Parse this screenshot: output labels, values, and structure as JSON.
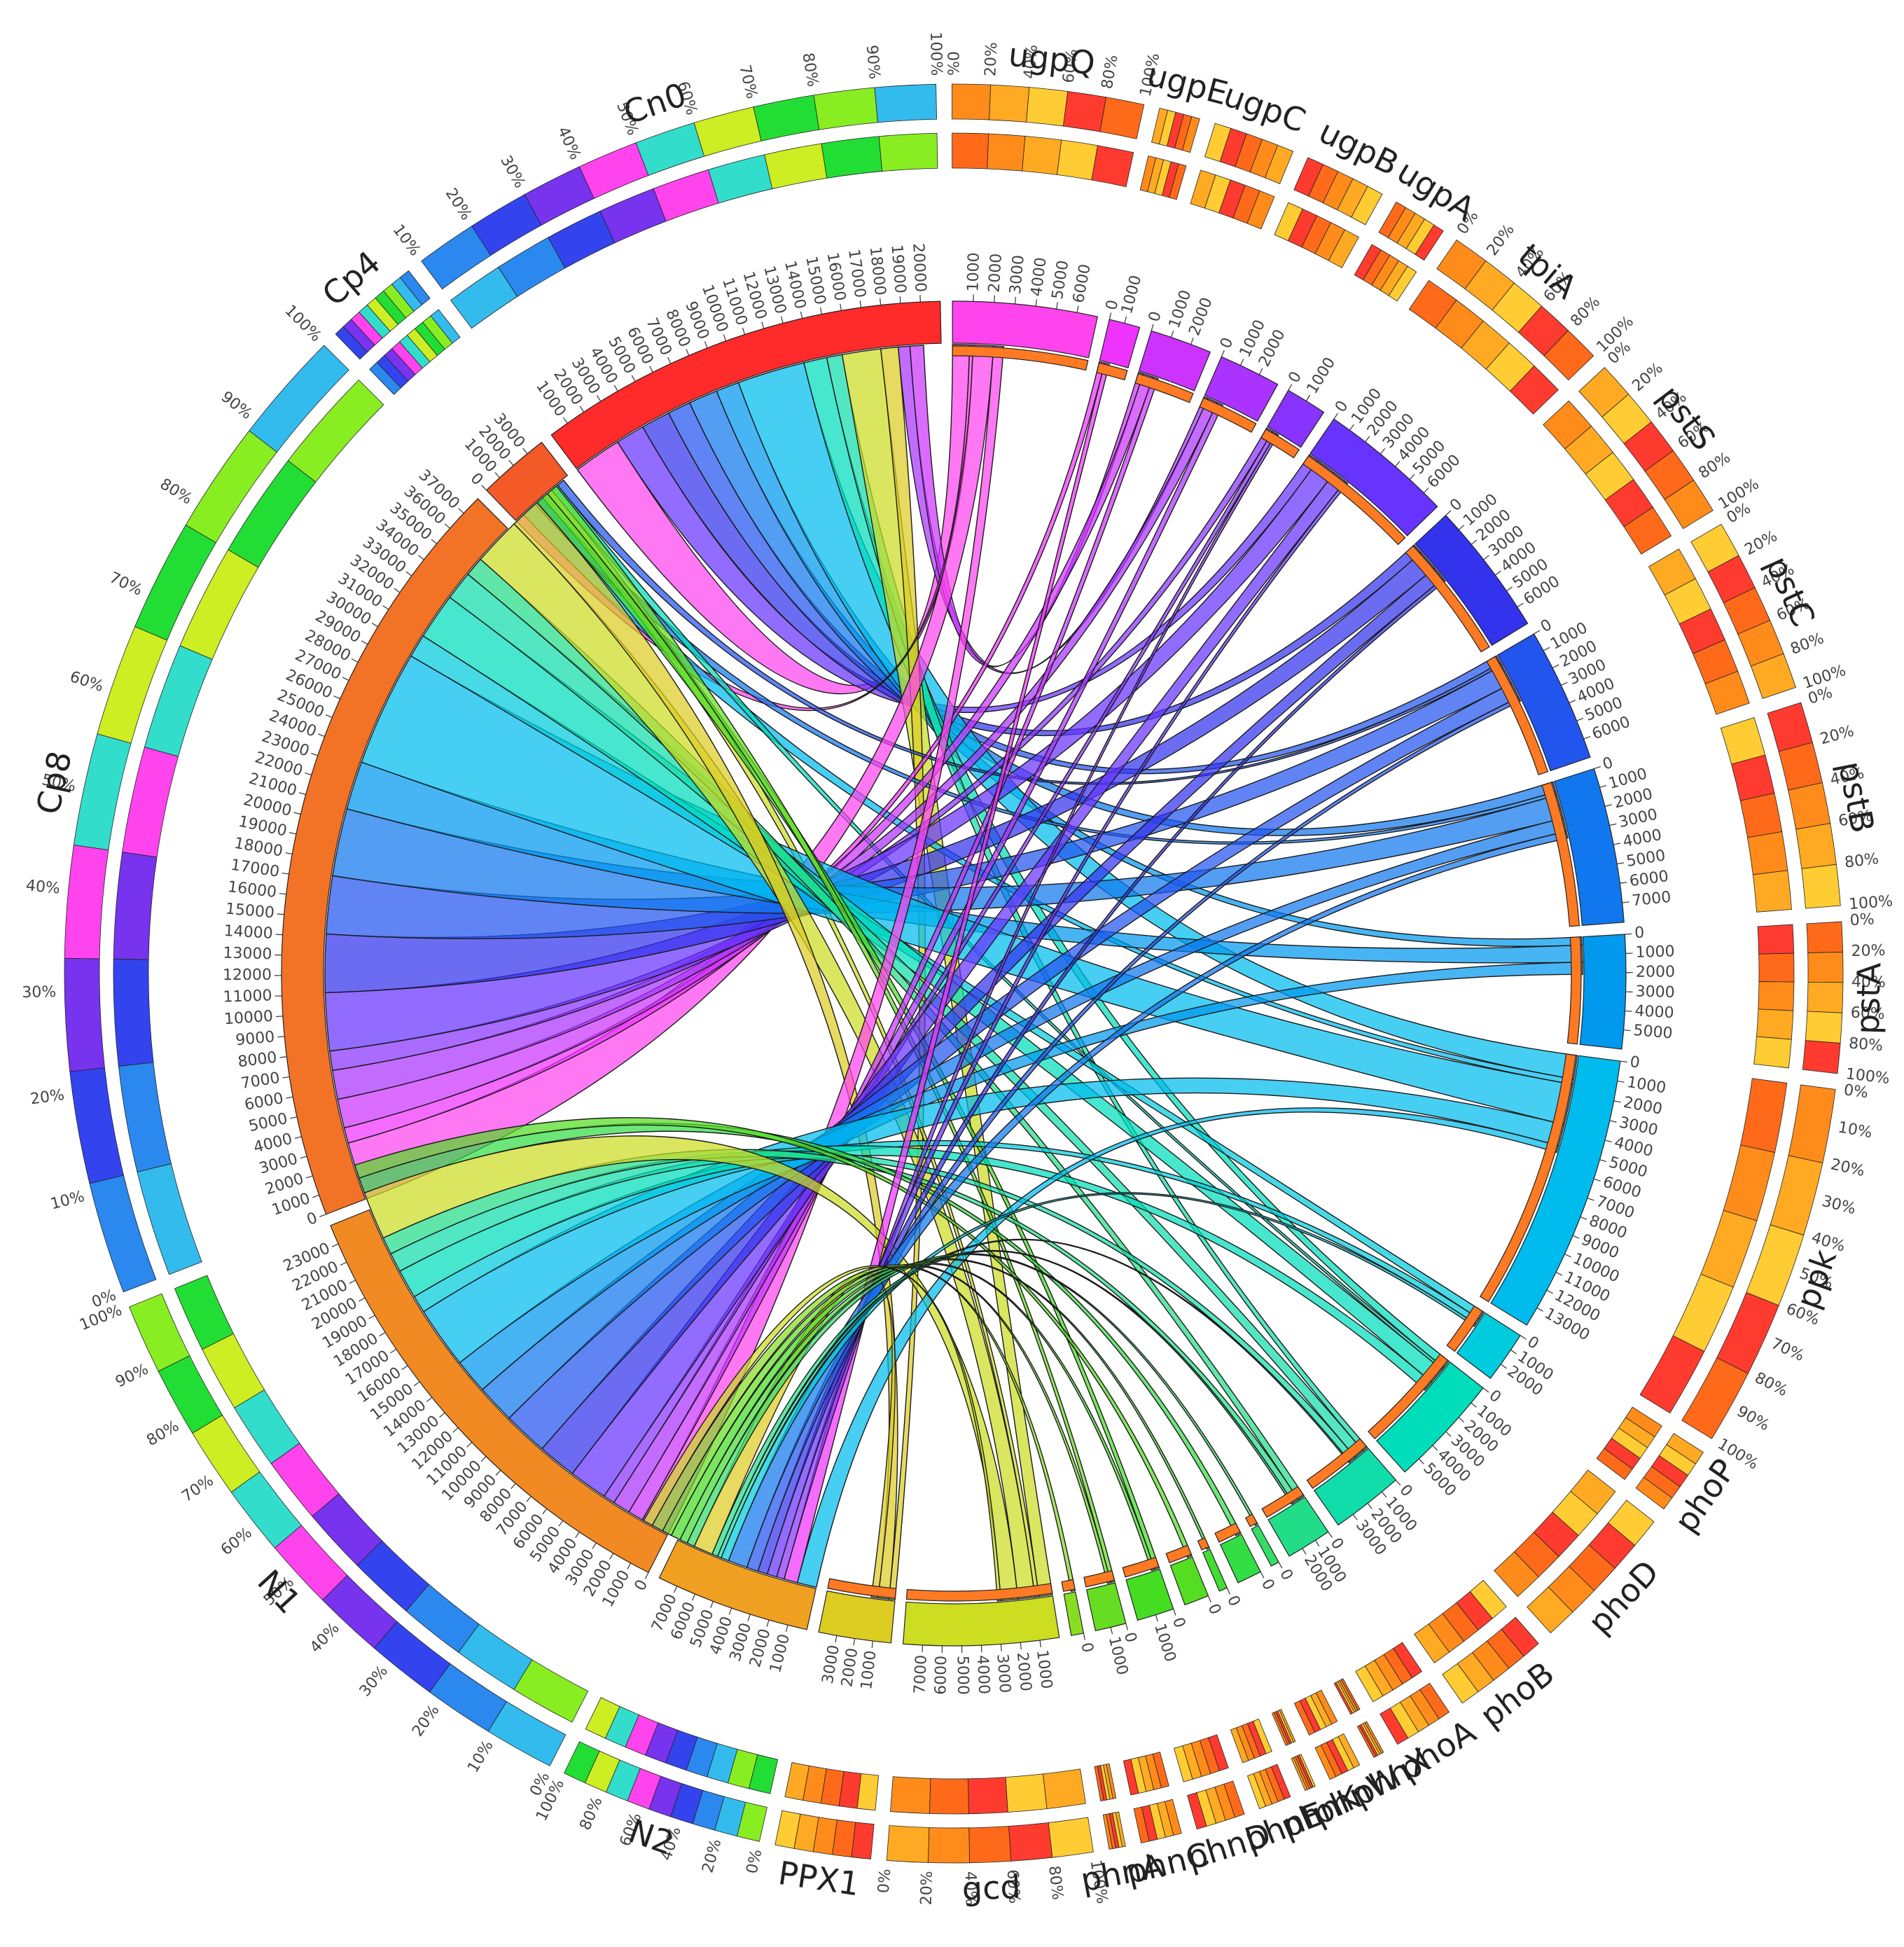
{
  "diagram": {
    "type": "circos-chord",
    "segments": [
      {
        "id": "Cn0",
        "label": "Cn0",
        "kind": "sample",
        "size": 20000,
        "color": "#ff2a2a",
        "ticks": [
          "1000",
          "2000",
          "3000",
          "4000",
          "5000",
          "6000",
          "7000",
          "8000",
          "9000",
          "10000",
          "11000",
          "12000",
          "13000",
          "14000",
          "15000",
          "16000",
          "17000",
          "18000",
          "19000",
          "20000"
        ],
        "pct": [
          "10%",
          "20%",
          "30%",
          "40%",
          "50%",
          "60%",
          "70%",
          "80%",
          "90%",
          "100%"
        ]
      },
      {
        "id": "ugpQ",
        "label": "ugpQ",
        "kind": "gene",
        "size": 7000,
        "color": "#ff44ee",
        "ticks": [
          "1000",
          "2000",
          "3000",
          "4000",
          "5000",
          "6000"
        ],
        "pct": [
          "0%",
          "20%",
          "40%",
          "60%",
          "80%",
          "100%"
        ]
      },
      {
        "id": "ugpE",
        "label": "ugpE",
        "kind": "gene",
        "size": 1500,
        "color": "#ee33ff",
        "ticks": [
          "0",
          "1000"
        ],
        "pct": []
      },
      {
        "id": "ugpC",
        "label": "ugpC",
        "kind": "gene",
        "size": 3000,
        "color": "#cc33ff",
        "ticks": [
          "0",
          "1000",
          "2000"
        ],
        "pct": []
      },
      {
        "id": "ugpB",
        "label": "ugpB",
        "kind": "gene",
        "size": 3000,
        "color": "#aa33ff",
        "ticks": [
          "0",
          "1000",
          "2000"
        ],
        "pct": []
      },
      {
        "id": "ugpA",
        "label": "ugpA",
        "kind": "gene",
        "size": 2000,
        "color": "#8833ff",
        "ticks": [
          "0",
          "1000"
        ],
        "pct": []
      },
      {
        "id": "tpiA",
        "label": "tpiA",
        "kind": "gene",
        "size": 6500,
        "color": "#6633ff",
        "ticks": [
          "0",
          "1000",
          "2000",
          "3000",
          "4000",
          "5000",
          "6000"
        ],
        "pct": [
          "0%",
          "20%",
          "40%",
          "60%",
          "80%",
          "100%"
        ]
      },
      {
        "id": "pstS",
        "label": "pstS",
        "kind": "gene",
        "size": 6500,
        "color": "#3333ee",
        "ticks": [
          "0",
          "1000",
          "2000",
          "3000",
          "4000",
          "5000",
          "6000"
        ],
        "pct": [
          "0%",
          "20%",
          "40%",
          "60%",
          "80%",
          "100%"
        ]
      },
      {
        "id": "pstC",
        "label": "pstC",
        "kind": "gene",
        "size": 6500,
        "color": "#2255ee",
        "ticks": [
          "0",
          "1000",
          "2000",
          "3000",
          "4000",
          "5000",
          "6000"
        ],
        "pct": [
          "0%",
          "20%",
          "40%",
          "60%",
          "80%",
          "100%"
        ]
      },
      {
        "id": "pstB",
        "label": "pstB",
        "kind": "gene",
        "size": 7500,
        "color": "#1177ee",
        "ticks": [
          "0",
          "1000",
          "2000",
          "3000",
          "4000",
          "5000",
          "6000",
          "7000"
        ],
        "pct": [
          "0%",
          "20%",
          "40%",
          "60%",
          "80%",
          "100%"
        ]
      },
      {
        "id": "pstA",
        "label": "pstA",
        "kind": "gene",
        "size": 5500,
        "color": "#0099ee",
        "ticks": [
          "0",
          "1000",
          "2000",
          "3000",
          "4000",
          "5000"
        ],
        "pct": [
          "0%",
          "20%",
          "40%",
          "60%",
          "80%",
          "100%"
        ]
      },
      {
        "id": "ppk",
        "label": "ppk",
        "kind": "gene",
        "size": 13500,
        "color": "#00bbee",
        "ticks": [
          "0",
          "1000",
          "2000",
          "3000",
          "4000",
          "5000",
          "6000",
          "7000",
          "8000",
          "9000",
          "10000",
          "11000",
          "12000",
          "13000"
        ],
        "pct": [
          "0%",
          "10%",
          "20%",
          "30%",
          "40%",
          "50%",
          "60%",
          "70%",
          "80%",
          "90%",
          "100%"
        ]
      },
      {
        "id": "phoP",
        "label": "phoP",
        "kind": "gene",
        "size": 2500,
        "color": "#00ccdd",
        "ticks": [
          "0",
          "1000",
          "2000"
        ],
        "pct": []
      },
      {
        "id": "phoD",
        "label": "phoD",
        "kind": "gene",
        "size": 5500,
        "color": "#00ddbb",
        "ticks": [
          "0",
          "1000",
          "2000",
          "3000",
          "4000",
          "5000"
        ],
        "pct": []
      },
      {
        "id": "phoB",
        "label": "phoB",
        "kind": "gene",
        "size": 3500,
        "color": "#11ddaa",
        "ticks": [
          "0",
          "1000",
          "2000",
          "3000"
        ],
        "pct": []
      },
      {
        "id": "phoA",
        "label": "phoA",
        "kind": "gene",
        "size": 2200,
        "color": "#22dd88",
        "ticks": [
          "0",
          "1000",
          "2000"
        ],
        "pct": []
      },
      {
        "id": "phnX",
        "label": "phnX",
        "kind": "gene",
        "size": 400,
        "color": "#33dd66",
        "ticks": [
          "0"
        ],
        "pct": []
      },
      {
        "id": "phnW",
        "label": "phnW",
        "kind": "gene",
        "size": 1200,
        "color": "#33dd44",
        "ticks": [
          "0"
        ],
        "pct": []
      },
      {
        "id": "phnK",
        "label": "phnK",
        "kind": "gene",
        "size": 400,
        "color": "#44dd33",
        "ticks": [
          "0"
        ],
        "pct": []
      },
      {
        "id": "phnE",
        "label": "phnE",
        "kind": "gene",
        "size": 1200,
        "color": "#55dd22",
        "ticks": [
          "0"
        ],
        "pct": []
      },
      {
        "id": "phnD",
        "label": "phnD",
        "kind": "gene",
        "size": 1800,
        "color": "#44dd22",
        "ticks": [
          "0",
          "1000"
        ],
        "pct": []
      },
      {
        "id": "phnC",
        "label": "phnC",
        "kind": "gene",
        "size": 1500,
        "color": "#66dd22",
        "ticks": [
          "0",
          "1000"
        ],
        "pct": []
      },
      {
        "id": "phnA",
        "label": "phnA",
        "kind": "gene",
        "size": 600,
        "color": "#88dd22",
        "ticks": [
          "0"
        ],
        "pct": []
      },
      {
        "id": "gcd",
        "label": "gcd",
        "kind": "gene",
        "size": 7500,
        "color": "#ccdd22",
        "ticks": [
          "1000",
          "2000",
          "3000",
          "4000",
          "5000",
          "6000",
          "7000"
        ],
        "pct": [
          "100%",
          "80%",
          "60%",
          "40%",
          "20%",
          "0%"
        ]
      },
      {
        "id": "PPX1",
        "label": "PPX1",
        "kind": "gene",
        "size": 3500,
        "color": "#ddcc22",
        "ticks": [
          "1000",
          "2000",
          "3000"
        ],
        "pct": []
      },
      {
        "id": "N2",
        "label": "N2",
        "kind": "sample",
        "size": 7500,
        "color": "#f0a020",
        "ticks": [
          "1000",
          "2000",
          "3000",
          "4000",
          "5000",
          "6000",
          "7000"
        ],
        "pct": [
          "0%",
          "20%",
          "40%",
          "60%",
          "80%",
          "100%"
        ]
      },
      {
        "id": "N1",
        "label": "N1",
        "kind": "sample",
        "size": 23000,
        "color": "#f28a24",
        "ticks": [
          "0",
          "1000",
          "2000",
          "3000",
          "4000",
          "5000",
          "6000",
          "7000",
          "8000",
          "9000",
          "10000",
          "11000",
          "12000",
          "13000",
          "14000",
          "15000",
          "16000",
          "17000",
          "18000",
          "19000",
          "20000",
          "21000",
          "22000",
          "23000"
        ],
        "pct": [
          "0%",
          "10%",
          "20%",
          "30%",
          "40%",
          "50%",
          "60%",
          "70%",
          "80%",
          "90%",
          "100%"
        ]
      },
      {
        "id": "Cp8",
        "label": "Cp8",
        "kind": "sample",
        "size": 37000,
        "color": "#f37326",
        "ticks": [
          "0",
          "1000",
          "2000",
          "3000",
          "4000",
          "5000",
          "6000",
          "7000",
          "8000",
          "9000",
          "10000",
          "11000",
          "12000",
          "13000",
          "14000",
          "15000",
          "16000",
          "17000",
          "18000",
          "19000",
          "20000",
          "21000",
          "22000",
          "23000",
          "24000",
          "25000",
          "26000",
          "27000",
          "28000",
          "29000",
          "30000",
          "31000",
          "32000",
          "33000",
          "34000",
          "35000",
          "36000",
          "37000"
        ],
        "pct": [
          "0%",
          "10%",
          "20%",
          "30%",
          "40%",
          "50%",
          "60%",
          "70%",
          "80%",
          "90%",
          "100%"
        ]
      },
      {
        "id": "Cp4",
        "label": "Cp4",
        "kind": "sample",
        "size": 3500,
        "color": "#f45a28",
        "ticks": [
          "0",
          "1000",
          "2000",
          "3000"
        ],
        "pct": []
      }
    ],
    "links": [
      {
        "sample": "Cn0",
        "gene": "ugpQ",
        "value": 2500
      },
      {
        "sample": "Cn0",
        "gene": "tpiA",
        "value": 1500
      },
      {
        "sample": "Cn0",
        "gene": "pstS",
        "value": 1500
      },
      {
        "sample": "Cn0",
        "gene": "pstC",
        "value": 1200
      },
      {
        "sample": "Cn0",
        "gene": "pstB",
        "value": 1500
      },
      {
        "sample": "Cn0",
        "gene": "pstA",
        "value": 1200
      },
      {
        "sample": "Cn0",
        "gene": "ppk",
        "value": 3500
      },
      {
        "sample": "Cn0",
        "gene": "phoD",
        "value": 1200
      },
      {
        "sample": "Cn0",
        "gene": "phoB",
        "value": 800
      },
      {
        "sample": "Cn0",
        "gene": "gcd",
        "value": 2000
      },
      {
        "sample": "Cn0",
        "gene": "PPX1",
        "value": 900
      },
      {
        "sample": "Cn0",
        "gene": "ugpB",
        "value": 600
      },
      {
        "sample": "Cn0",
        "gene": "ugpC",
        "value": 700
      },
      {
        "sample": "Cp4",
        "gene": "ugpQ",
        "value": 500
      },
      {
        "sample": "Cp4",
        "gene": "ppk",
        "value": 800
      },
      {
        "sample": "Cp4",
        "gene": "pstB",
        "value": 500
      },
      {
        "sample": "Cp4",
        "gene": "gcd",
        "value": 600
      },
      {
        "sample": "Cp4",
        "gene": "phoD",
        "value": 400
      },
      {
        "sample": "Cp4",
        "gene": "pstC",
        "value": 400
      },
      {
        "sample": "Cp8",
        "gene": "ugpQ",
        "value": 3000
      },
      {
        "sample": "Cp8",
        "gene": "ugpE",
        "value": 800
      },
      {
        "sample": "Cp8",
        "gene": "ugpC",
        "value": 1500
      },
      {
        "sample": "Cp8",
        "gene": "ugpB",
        "value": 1500
      },
      {
        "sample": "Cp8",
        "gene": "ugpA",
        "value": 1000
      },
      {
        "sample": "Cp8",
        "gene": "tpiA",
        "value": 3000
      },
      {
        "sample": "Cp8",
        "gene": "pstS",
        "value": 3000
      },
      {
        "sample": "Cp8",
        "gene": "pstC",
        "value": 3000
      },
      {
        "sample": "Cp8",
        "gene": "pstB",
        "value": 3500
      },
      {
        "sample": "Cp8",
        "gene": "pstA",
        "value": 2500
      },
      {
        "sample": "Cp8",
        "gene": "ppk",
        "value": 6000
      },
      {
        "sample": "Cp8",
        "gene": "phoP",
        "value": 1200
      },
      {
        "sample": "Cp8",
        "gene": "phoD",
        "value": 2400
      },
      {
        "sample": "Cp8",
        "gene": "phoB",
        "value": 1500
      },
      {
        "sample": "Cp8",
        "gene": "phoA",
        "value": 1000
      },
      {
        "sample": "Cp8",
        "gene": "gcd",
        "value": 2500
      },
      {
        "sample": "Cp8",
        "gene": "PPX1",
        "value": 1600
      },
      {
        "sample": "Cp8",
        "gene": "phnD",
        "value": 700
      },
      {
        "sample": "Cp8",
        "gene": "phnC",
        "value": 600
      },
      {
        "sample": "N1",
        "gene": "ugpQ",
        "value": 1500
      },
      {
        "sample": "N1",
        "gene": "ugpC",
        "value": 800
      },
      {
        "sample": "N1",
        "gene": "ugpB",
        "value": 900
      },
      {
        "sample": "N1",
        "gene": "ugpA",
        "value": 600
      },
      {
        "sample": "N1",
        "gene": "tpiA",
        "value": 2000
      },
      {
        "sample": "N1",
        "gene": "pstS",
        "value": 2000
      },
      {
        "sample": "N1",
        "gene": "pstC",
        "value": 2300
      },
      {
        "sample": "N1",
        "gene": "pstB",
        "value": 2000
      },
      {
        "sample": "N1",
        "gene": "pstA",
        "value": 1800
      },
      {
        "sample": "N1",
        "gene": "ppk",
        "value": 3200
      },
      {
        "sample": "N1",
        "gene": "phoP",
        "value": 900
      },
      {
        "sample": "N1",
        "gene": "phoD",
        "value": 1500
      },
      {
        "sample": "N1",
        "gene": "phoB",
        "value": 1000
      },
      {
        "sample": "N1",
        "gene": "phoA",
        "value": 900
      },
      {
        "sample": "N1",
        "gene": "gcd",
        "value": 2500
      },
      {
        "sample": "N1",
        "gene": "phnW",
        "value": 800
      },
      {
        "sample": "N1",
        "gene": "phnE",
        "value": 700
      },
      {
        "sample": "N2",
        "gene": "ugpQ",
        "value": 0
      },
      {
        "sample": "N2",
        "gene": "ppk",
        "value": 1000
      },
      {
        "sample": "N2",
        "gene": "ugpE",
        "value": 700
      },
      {
        "sample": "N2",
        "gene": "ugpA",
        "value": 400
      },
      {
        "sample": "N2",
        "gene": "tpiA",
        "value": 500
      },
      {
        "sample": "N2",
        "gene": "pstS",
        "value": 500
      },
      {
        "sample": "N2",
        "gene": "pstC",
        "value": 600
      },
      {
        "sample": "N2",
        "gene": "pstB",
        "value": 1000
      },
      {
        "sample": "N2",
        "gene": "phoP",
        "value": 400
      },
      {
        "sample": "N2",
        "gene": "phoB",
        "value": 200
      },
      {
        "sample": "N2",
        "gene": "phoA",
        "value": 300
      },
      {
        "sample": "N2",
        "gene": "PPX1",
        "value": 1000
      },
      {
        "sample": "N2",
        "gene": "phnX",
        "value": 400
      },
      {
        "sample": "N2",
        "gene": "phnK",
        "value": 400
      },
      {
        "sample": "N2",
        "gene": "phnD",
        "value": 500
      },
      {
        "sample": "N2",
        "gene": "phnC",
        "value": 500
      },
      {
        "sample": "N2",
        "gene": "phnA",
        "value": 600
      },
      {
        "sample": "N2",
        "gene": "gcd",
        "value": 500
      }
    ],
    "band_colors": [
      "#ff3b2f",
      "#ff6a1a",
      "#ff8c1a",
      "#ffaa22",
      "#ffcc33"
    ],
    "sample_band_colors": [
      "#33bbee",
      "#2a88ee",
      "#3344ee",
      "#7733ee",
      "#ff44ee",
      "#33ddcc",
      "#ccee22",
      "#22dd33",
      "#88ee22"
    ]
  }
}
